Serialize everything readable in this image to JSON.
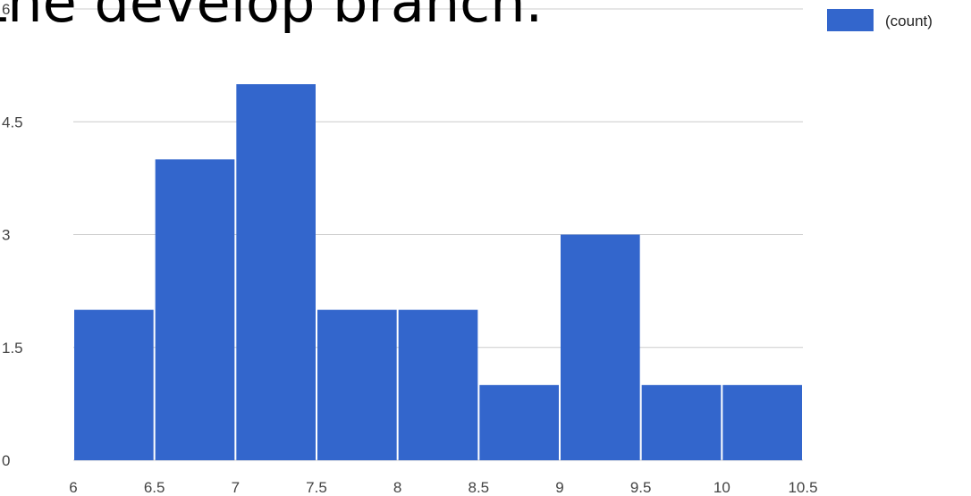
{
  "slide": {
    "title_text": "the develop branch."
  },
  "chart_data": {
    "type": "bar",
    "subtype": "histogram",
    "bins": [
      {
        "start": 6.0,
        "end": 6.5,
        "count": 2
      },
      {
        "start": 6.5,
        "end": 7.0,
        "count": 4
      },
      {
        "start": 7.0,
        "end": 7.5,
        "count": 5
      },
      {
        "start": 7.5,
        "end": 8.0,
        "count": 2
      },
      {
        "start": 8.0,
        "end": 8.5,
        "count": 2
      },
      {
        "start": 8.5,
        "end": 9.0,
        "count": 1
      },
      {
        "start": 9.0,
        "end": 9.5,
        "count": 3
      },
      {
        "start": 9.5,
        "end": 10.0,
        "count": 1
      },
      {
        "start": 10.0,
        "end": 10.5,
        "count": 1
      }
    ],
    "series": [
      {
        "name": "(count)",
        "color": "#3366cc"
      }
    ],
    "xlim": [
      6,
      10.5
    ],
    "ylim": [
      0,
      6
    ],
    "x_tick_labels": [
      "6",
      "6.5",
      "7",
      "7.5",
      "8",
      "8.5",
      "9",
      "9.5",
      "10",
      "10.5"
    ],
    "y_tick_labels": [
      "0",
      "1.5",
      "3",
      "4.5",
      "6"
    ],
    "grid": true,
    "legend_position": "top-right",
    "bar_color": "#3366cc",
    "grid_color": "#cccccc"
  }
}
